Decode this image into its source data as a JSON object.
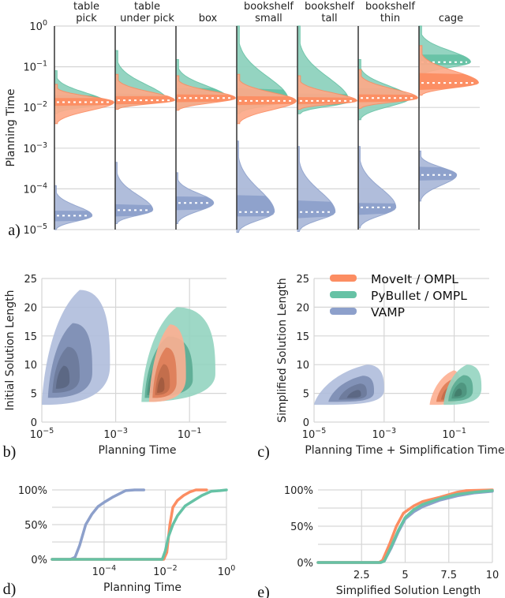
{
  "colors": {
    "moveit": "#fc8d62",
    "pybullet": "#66c2a5",
    "vamp": "#8da0cb"
  },
  "legend": [
    {
      "key": "moveit",
      "label": "MoveIt / OMPL"
    },
    {
      "key": "pybullet",
      "label": "PyBullet / OMPL"
    },
    {
      "key": "vamp",
      "label": "VAMP"
    }
  ],
  "chart_data": [
    {
      "panel": "a)",
      "type": "violin",
      "ylabel": "Planning Time",
      "yscale": "log",
      "ylim_log10": [
        -5,
        0
      ],
      "yticks": [
        "10^0",
        "10^-1",
        "10^-2",
        "10^-3",
        "10^-4",
        "10^-5"
      ],
      "categories": [
        "table\npick",
        "table\nunder pick",
        "box",
        "bookshelf\nsmall",
        "bookshelf\ntall",
        "bookshelf\nthin",
        "cage"
      ],
      "category_lines": [
        [
          "table",
          "pick"
        ],
        [
          "table",
          "under pick"
        ],
        [
          "box"
        ],
        [
          "bookshelf",
          "small"
        ],
        [
          "bookshelf",
          "tall"
        ],
        [
          "bookshelf",
          "thin"
        ],
        [
          "cage"
        ]
      ],
      "series": [
        {
          "name": "MoveIt / OMPL",
          "key": "moveit",
          "median": [
            0.0135,
            0.015,
            0.017,
            0.0145,
            0.0145,
            0.017,
            0.04
          ],
          "q1": [
            0.011,
            0.012,
            0.0135,
            0.0115,
            0.012,
            0.0135,
            0.027
          ],
          "q3": [
            0.017,
            0.019,
            0.021,
            0.019,
            0.018,
            0.021,
            0.07
          ],
          "min": [
            0.004,
            0.009,
            0.0085,
            0.004,
            0.009,
            0.0095,
            0.02
          ],
          "max": [
            0.037,
            0.065,
            0.06,
            0.065,
            0.06,
            0.085,
            0.33
          ]
        },
        {
          "name": "PyBullet / OMPL",
          "key": "pybullet",
          "median": [
            0.013,
            0.015,
            0.017,
            0.015,
            0.014,
            0.017,
            0.13
          ],
          "q1": [
            0.0095,
            0.012,
            0.014,
            0.011,
            0.011,
            0.013,
            0.11
          ],
          "q3": [
            0.02,
            0.022,
            0.03,
            0.03,
            0.022,
            0.03,
            0.2
          ],
          "min": [
            0.007,
            0.009,
            0.009,
            0.007,
            0.007,
            0.005,
            0.06
          ],
          "max": [
            0.08,
            0.25,
            0.15,
            1.0,
            1.0,
            0.15,
            1.0
          ]
        },
        {
          "name": "VAMP",
          "key": "vamp",
          "median": [
            2.2e-05,
            3e-05,
            4.5e-05,
            2.7e-05,
            2.7e-05,
            3.5e-05,
            0.00022
          ],
          "q1": [
            1.6e-05,
            2.1e-05,
            3e-05,
            2.1e-05,
            1.9e-05,
            2.3e-05,
            0.00016
          ],
          "q3": [
            2.9e-05,
            4.2e-05,
            6.5e-05,
            7e-05,
            5.2e-05,
            4.5e-05,
            0.00035
          ],
          "min": [
            1e-05,
            1.4e-05,
            1.4e-05,
            8.5e-06,
            9e-06,
            1.1e-05,
            5e-05
          ],
          "max": [
            0.00012,
            0.00045,
            0.00025,
            0.0015,
            0.0011,
            0.0011,
            0.00085
          ]
        }
      ]
    },
    {
      "panel": "b)",
      "type": "kde-contour",
      "xlabel": "Planning Time",
      "ylabel": "Initial Solution Length",
      "xscale": "log",
      "xlim_log10": [
        -5,
        0
      ],
      "ylim": [
        0,
        25
      ],
      "xticks": [
        "10^-5",
        "10^-3",
        "10^-1"
      ],
      "yticks": [
        0,
        5,
        10,
        15,
        20,
        25
      ],
      "series": [
        {
          "name": "VAMP",
          "key": "vamp",
          "peak_time": 3e-05,
          "peak_length": 6.5,
          "extent_time": [
            1e-05,
            0.0007
          ],
          "extent_length": [
            3,
            23
          ]
        },
        {
          "name": "PyBullet / OMPL",
          "key": "pybullet",
          "peak_time": 0.009,
          "peak_length": 5.5,
          "extent_time": [
            0.005,
            0.5
          ],
          "extent_length": [
            3.5,
            20
          ]
        },
        {
          "name": "MoveIt / OMPL",
          "key": "moveit",
          "peak_time": 0.015,
          "peak_length": 5.5,
          "extent_time": [
            0.008,
            0.08
          ],
          "extent_length": [
            3.5,
            17
          ]
        }
      ]
    },
    {
      "panel": "c)",
      "type": "kde-contour",
      "xlabel": "Planning Time + Simplification Time",
      "ylabel": "Simplified Solution Length",
      "xscale": "log",
      "xlim_log10": [
        -5,
        0
      ],
      "ylim": [
        0,
        25
      ],
      "xticks": [
        "10^-5",
        "10^-3",
        "10^-1"
      ],
      "yticks": [
        0,
        5,
        10,
        15,
        20,
        25
      ],
      "series": [
        {
          "name": "VAMP",
          "key": "vamp",
          "peak_time": 0.00015,
          "peak_length": 4.5,
          "extent_time": [
            1e-05,
            0.001
          ],
          "extent_length": [
            3,
            10
          ]
        },
        {
          "name": "MoveIt / OMPL",
          "key": "moveit",
          "peak_time": 0.07,
          "peak_length": 4.5,
          "extent_time": [
            0.02,
            0.15
          ],
          "extent_length": [
            3,
            9
          ]
        },
        {
          "name": "PyBullet / OMPL",
          "key": "pybullet",
          "peak_time": 0.12,
          "peak_length": 4.8,
          "extent_time": [
            0.05,
            0.6
          ],
          "extent_length": [
            3,
            10
          ]
        }
      ]
    },
    {
      "panel": "d)",
      "type": "line",
      "subtype": "cdf",
      "xlabel": "Planning Time",
      "xscale": "log",
      "xlim_log10": [
        -5.7,
        0
      ],
      "ylim": [
        0,
        1
      ],
      "xticks": [
        "10^-4",
        "10^-2",
        "10^0"
      ],
      "yticks": [
        "0%",
        "50%",
        "100%"
      ],
      "series": [
        {
          "name": "VAMP",
          "key": "vamp",
          "x_log10": [
            -5.7,
            -5.1,
            -4.95,
            -4.8,
            -4.6,
            -4.4,
            -4.2,
            -4.0,
            -3.7,
            -3.3,
            -3.0,
            -2.7
          ],
          "y": [
            0,
            0,
            0.03,
            0.2,
            0.5,
            0.65,
            0.76,
            0.82,
            0.9,
            0.99,
            1.0,
            1.0
          ]
        },
        {
          "name": "MoveIt / OMPL",
          "key": "moveit",
          "x_log10": [
            -5.7,
            -2.05,
            -1.95,
            -1.85,
            -1.75,
            -1.6,
            -1.4,
            -1.2,
            -1.0,
            -0.65
          ],
          "y": [
            0,
            0,
            0.1,
            0.5,
            0.75,
            0.85,
            0.92,
            0.97,
            1.0,
            1.0
          ]
        },
        {
          "name": "PyBullet / OMPL",
          "key": "pybullet",
          "x_log10": [
            -5.7,
            -2.1,
            -2.0,
            -1.9,
            -1.75,
            -1.6,
            -1.35,
            -1.1,
            -0.8,
            -0.5,
            -0.2,
            0.0
          ],
          "y": [
            0,
            0,
            0.12,
            0.32,
            0.5,
            0.63,
            0.77,
            0.84,
            0.92,
            0.98,
            0.99,
            1.0
          ]
        }
      ]
    },
    {
      "panel": "e)",
      "type": "line",
      "subtype": "cdf",
      "xlabel": "Simplified Solution Length",
      "xlim": [
        0,
        10
      ],
      "ylim": [
        0,
        1
      ],
      "xticks": [
        "2.5",
        "5",
        "7.5",
        "10"
      ],
      "yticks": [
        "0%",
        "50%",
        "100%"
      ],
      "series": [
        {
          "name": "VAMP",
          "key": "vamp",
          "x": [
            0,
            3.6,
            3.8,
            4.2,
            4.6,
            5.0,
            5.5,
            6.0,
            7.0,
            8.0,
            9.0,
            10.0
          ],
          "y": [
            0,
            0,
            0.02,
            0.2,
            0.42,
            0.6,
            0.7,
            0.77,
            0.86,
            0.92,
            0.96,
            0.98
          ]
        },
        {
          "name": "MoveIt / OMPL",
          "key": "moveit",
          "x": [
            0,
            3.5,
            3.7,
            4.1,
            4.5,
            4.9,
            5.5,
            6.0,
            7.0,
            8.0,
            8.5,
            10.0
          ],
          "y": [
            0,
            0,
            0.03,
            0.25,
            0.5,
            0.68,
            0.78,
            0.84,
            0.9,
            0.97,
            0.99,
            1.0
          ]
        },
        {
          "name": "PyBullet / OMPL",
          "key": "pybullet",
          "x": [
            0,
            3.6,
            3.8,
            4.2,
            4.6,
            5.0,
            5.5,
            6.0,
            7.0,
            8.0,
            9.0,
            10.0
          ],
          "y": [
            0,
            0,
            0.02,
            0.22,
            0.44,
            0.62,
            0.73,
            0.8,
            0.88,
            0.94,
            0.97,
            0.99
          ]
        }
      ]
    }
  ]
}
